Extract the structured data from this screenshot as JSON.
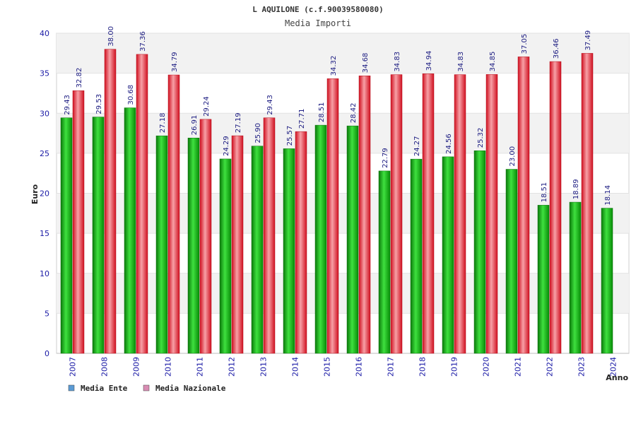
{
  "chart_data": {
    "type": "bar",
    "title": "L AQUILONE (c.f.90039580080)",
    "subtitle": "Media Importi",
    "xlabel": "Anno",
    "ylabel": "Euro",
    "ylim": [
      0,
      40
    ],
    "yticks": [
      0,
      5,
      10,
      15,
      20,
      25,
      30,
      35,
      40
    ],
    "categories": [
      "2007",
      "2008",
      "2009",
      "2010",
      "2011",
      "2012",
      "2013",
      "2014",
      "2015",
      "2016",
      "2017",
      "2018",
      "2019",
      "2020",
      "2021",
      "2022",
      "2023",
      "2024"
    ],
    "series": [
      {
        "name": "Media Ente",
        "color": "#1fb31f",
        "legend_color": "#5b9bd5",
        "values": [
          29.43,
          29.53,
          30.68,
          27.18,
          26.91,
          24.29,
          25.9,
          25.57,
          28.51,
          28.42,
          22.79,
          24.27,
          24.56,
          25.32,
          23.0,
          18.51,
          18.89,
          18.14
        ],
        "labels": [
          "29.43",
          "29.53",
          "30.68",
          "27.18",
          "26.91",
          "24.29",
          "25.90",
          "25.57",
          "28.51",
          "28.42",
          "22.79",
          "24.27",
          "24.56",
          "25.32",
          "23.00",
          "18.51",
          "18.89",
          "18.14"
        ]
      },
      {
        "name": "Media Nazionale",
        "color": "#e8323c",
        "legend_color": "#d98cb3",
        "values": [
          32.82,
          38.0,
          37.36,
          34.79,
          29.24,
          27.19,
          29.43,
          27.71,
          34.32,
          34.68,
          34.83,
          34.94,
          34.83,
          34.85,
          37.05,
          36.46,
          37.49,
          null
        ],
        "labels": [
          "32.82",
          "38.00",
          "37.36",
          "34.79",
          "29.24",
          "27.19",
          "29.43",
          "27.71",
          "34.32",
          "34.68",
          "34.83",
          "34.94",
          "34.83",
          "34.85",
          "37.05",
          "36.46",
          "37.49",
          null
        ]
      }
    ],
    "grid": true,
    "legend_position": "bottom-left"
  }
}
